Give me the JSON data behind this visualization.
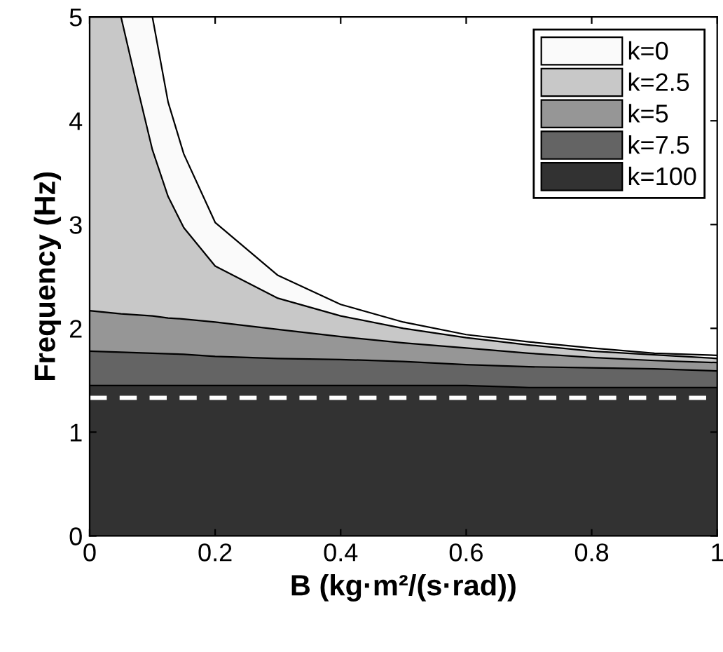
{
  "chart_data": {
    "type": "area",
    "stacked": true,
    "xlabel": "B (kg·m²/(s·rad))",
    "ylabel": "Frequency (Hz)",
    "xlim": [
      0,
      1
    ],
    "ylim": [
      0,
      5
    ],
    "xticks": [
      0,
      0.2,
      0.4,
      0.6,
      0.8,
      1
    ],
    "yticks": [
      0,
      1,
      2,
      3,
      4,
      5
    ],
    "grid": false,
    "legend": "top right",
    "x": [
      0,
      0.05,
      0.075,
      0.1,
      0.125,
      0.15,
      0.2,
      0.3,
      0.4,
      0.5,
      0.6,
      0.7,
      0.8,
      0.9,
      1
    ],
    "series": [
      {
        "name": "k=100",
        "color": "#323232",
        "values": [
          1.45,
          1.45,
          1.45,
          1.45,
          1.45,
          1.45,
          1.45,
          1.45,
          1.45,
          1.45,
          1.45,
          1.43,
          1.43,
          1.43,
          1.43
        ]
      },
      {
        "name": "k=7.5",
        "color": "#646464",
        "values": [
          0.33,
          0.32,
          0.315,
          0.31,
          0.305,
          0.3,
          0.28,
          0.26,
          0.25,
          0.23,
          0.2,
          0.2,
          0.19,
          0.18,
          0.16
        ]
      },
      {
        "name": "k=5",
        "color": "#969696",
        "values": [
          0.39,
          0.37,
          0.365,
          0.36,
          0.345,
          0.34,
          0.33,
          0.28,
          0.22,
          0.18,
          0.16,
          0.13,
          0.1,
          0.08,
          0.08
        ]
      },
      {
        "name": "k=2.5",
        "color": "#c8c8c8",
        "values": [
          2.83,
          2.86,
          2.22,
          1.6,
          1.17,
          0.88,
          0.54,
          0.3,
          0.2,
          0.14,
          0.1,
          0.08,
          0.06,
          0.055,
          0.04
        ]
      },
      {
        "name": "k=0",
        "color": "#fafafa",
        "values": [
          0,
          0,
          0.65,
          1.28,
          0.91,
          0.71,
          0.42,
          0.22,
          0.11,
          0.06,
          0.03,
          0.03,
          0.03,
          0.015,
          0.03
        ]
      }
    ],
    "ref_lines": [
      {
        "axis": "y",
        "value": 1.33,
        "color": "#ffffff",
        "line_style": "dashed"
      }
    ]
  }
}
